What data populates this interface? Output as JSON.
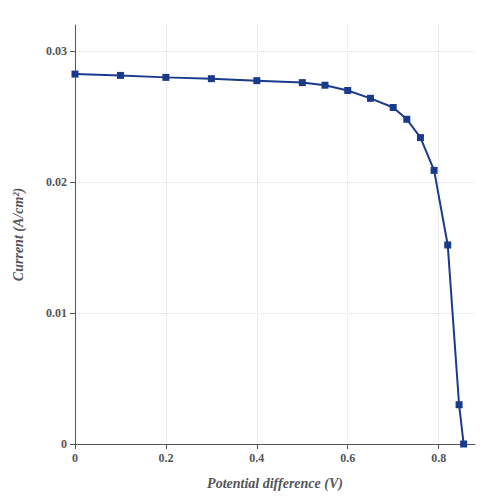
{
  "chart_data": {
    "type": "line",
    "x": [
      0.0,
      0.1,
      0.2,
      0.3,
      0.4,
      0.5,
      0.55,
      0.6,
      0.65,
      0.7,
      0.73,
      0.76,
      0.79,
      0.82,
      0.845,
      0.855
    ],
    "values": [
      0.02825,
      0.02815,
      0.028,
      0.0279,
      0.02775,
      0.0276,
      0.0274,
      0.027,
      0.0264,
      0.0257,
      0.0248,
      0.0234,
      0.0209,
      0.0152,
      0.003,
      0.0
    ],
    "color": "#1a3a8c",
    "marker": "square",
    "xlabel": "Potential difference (V)",
    "ylabel": "Current (A/cm²)",
    "xlim": [
      0.0,
      0.88
    ],
    "ylim": [
      0.0,
      0.032
    ],
    "xticks": [
      0,
      0.2,
      0.4,
      0.6,
      0.8
    ],
    "yticks": [
      0,
      0.01,
      0.02,
      0.03
    ],
    "grid": true
  }
}
